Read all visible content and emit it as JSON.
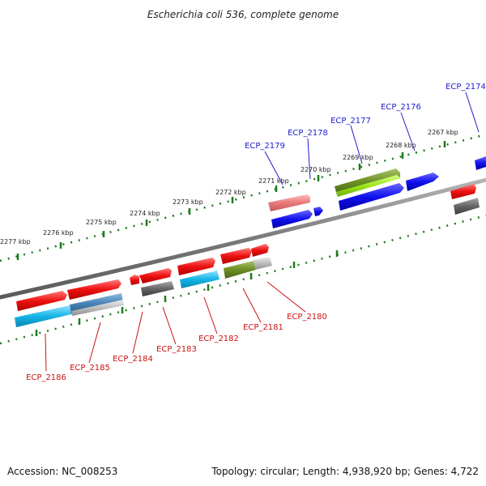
{
  "title": "Escherichia coli 536, complete genome",
  "footer": {
    "accession": "Accession: NC_008253",
    "topology": "Topology: circular; Length: 4,938,920 bp; Genes: 4,722"
  },
  "scale_labels": [
    "2277 kbp",
    "2276 kbp",
    "2275 kbp",
    "2274 kbp",
    "2273 kbp",
    "2272 kbp",
    "2271 kbp",
    "2270 kbp",
    "2269 kbp",
    "2268 kbp",
    "2267 kbp"
  ],
  "genes_top": [
    "ECP_2179",
    "ECP_2178",
    "ECP_2177",
    "ECP_2176",
    "ECP_2174"
  ],
  "genes_bottom": [
    "ECP_2186",
    "ECP_2185",
    "ECP_2184",
    "ECP_2183",
    "ECP_2182",
    "ECP_2181",
    "ECP_2180"
  ],
  "colors": {
    "backbone": "#8a8a8a",
    "tick": "#1f7a1f",
    "cds_red": "#ee1111",
    "cds_blue": "#1111ee",
    "cds_cyan": "#14b4e6",
    "pink": "#e87a7a",
    "olive": "#6b8e23",
    "lime": "#9ae619",
    "gray": "#666666",
    "steel": "#4682b4",
    "light_gray": "#bdbdbd"
  }
}
